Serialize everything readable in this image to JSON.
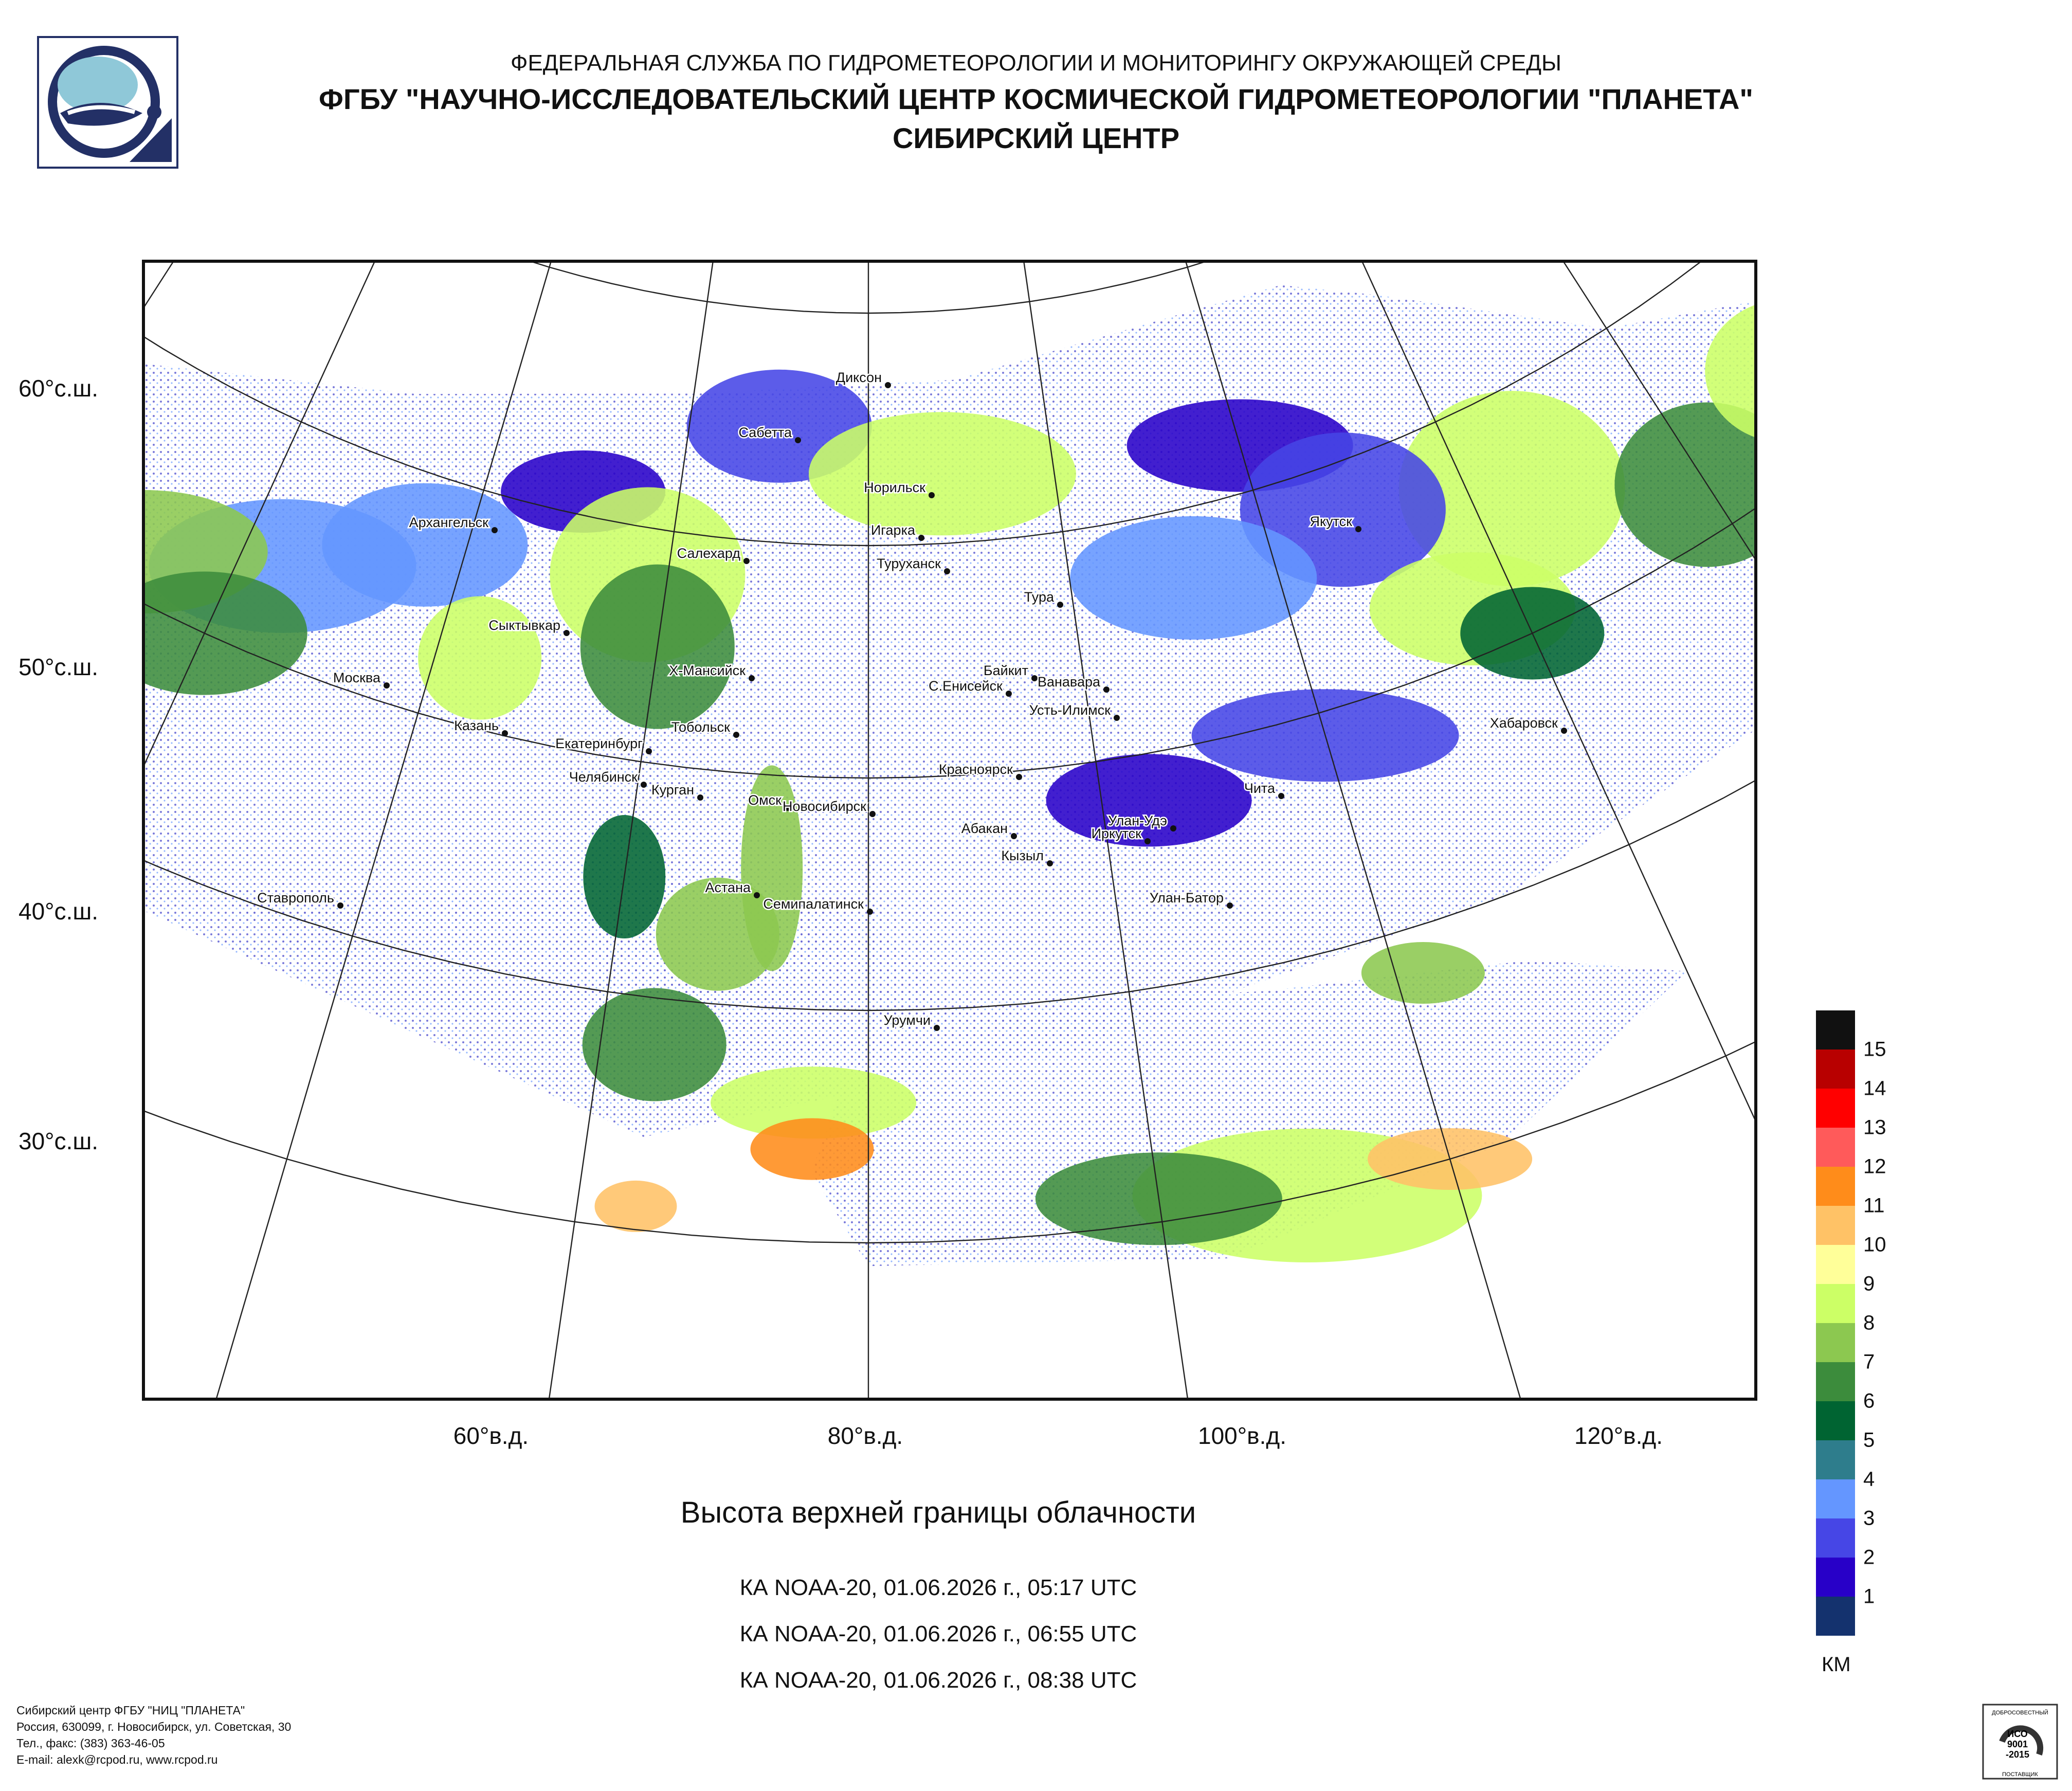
{
  "header": {
    "line1": "ФЕДЕРАЛЬНАЯ СЛУЖБА ПО ГИДРОМЕТЕОРОЛОГИИ И МОНИТОРИНГУ ОКРУЖАЮЩЕЙ СРЕДЫ",
    "line2": "ФГБУ \"НАУЧНО-ИССЛЕДОВАТЕЛЬСКИЙ ЦЕНТР КОСМИЧЕСКОЙ ГИДРОМЕТЕОРОЛОГИИ \"ПЛАНЕТА\"",
    "line3": "СИБИРСКИЙ ЦЕНТР"
  },
  "map": {
    "lat_labels": [
      "60°с.ш.",
      "50°с.ш.",
      "40°с.ш.",
      "30°с.ш."
    ],
    "lon_labels": [
      "60°в.д.",
      "80°в.д.",
      "100°в.д.",
      "120°в.д."
    ],
    "cities": [
      {
        "name": "Диксон"
      },
      {
        "name": "Сабетта"
      },
      {
        "name": "Норильск"
      },
      {
        "name": "Игарка"
      },
      {
        "name": "Архангельск"
      },
      {
        "name": "Салехард"
      },
      {
        "name": "Туруханск"
      },
      {
        "name": "Тура"
      },
      {
        "name": "Якутск"
      },
      {
        "name": "Сыктывкар"
      },
      {
        "name": "Байкит"
      },
      {
        "name": "Ванавара"
      },
      {
        "name": "Москва"
      },
      {
        "name": "Х-Мансийск"
      },
      {
        "name": "С.Енисейск"
      },
      {
        "name": "Усть-Илимск"
      },
      {
        "name": "Казань"
      },
      {
        "name": "Тобольск"
      },
      {
        "name": "Хабаровск"
      },
      {
        "name": "Екатеринбург"
      },
      {
        "name": "Челябинск"
      },
      {
        "name": "Красноярск"
      },
      {
        "name": "Курган"
      },
      {
        "name": "Чита"
      },
      {
        "name": "Омск"
      },
      {
        "name": "Новосибирск"
      },
      {
        "name": "Абакан"
      },
      {
        "name": "Улан-Удэ"
      },
      {
        "name": "Иркутск"
      },
      {
        "name": "Кызыл"
      },
      {
        "name": "Астана"
      },
      {
        "name": "Ставрополь"
      },
      {
        "name": "Семипалатинск"
      },
      {
        "name": "Улан-Батор"
      },
      {
        "name": "Урумчи"
      }
    ]
  },
  "legend": {
    "levels": [
      {
        "label": "15",
        "color": "#111111"
      },
      {
        "label": "14",
        "color": "#b80000"
      },
      {
        "label": "13",
        "color": "#ff0000"
      },
      {
        "label": "12",
        "color": "#ff5a5a"
      },
      {
        "label": "11",
        "color": "#ff8c1a"
      },
      {
        "label": "10",
        "color": "#ffc266"
      },
      {
        "label": "9",
        "color": "#ffff99"
      },
      {
        "label": "8",
        "color": "#ccff66"
      },
      {
        "label": "7",
        "color": "#8cc850"
      },
      {
        "label": "6",
        "color": "#3c8c3c"
      },
      {
        "label": "5",
        "color": "#006432"
      },
      {
        "label": "4",
        "color": "#2e7d8c"
      },
      {
        "label": "3",
        "color": "#6496ff"
      },
      {
        "label": "2",
        "color": "#4646e6"
      },
      {
        "label": "1",
        "color": "#2800c8"
      },
      {
        "label": "",
        "color": "#14326e"
      }
    ],
    "unit": "КМ"
  },
  "title": "Высота верхней границы облачности",
  "passes": [
    "КА NOAA-20, 01.06.2026 г., 05:17 UTC",
    "КА NOAA-20, 01.06.2026 г., 06:55 UTC",
    "КА NOAA-20, 01.06.2026 г., 08:38 UTC"
  ],
  "footer": [
    "Сибирский центр ФГБУ \"НИЦ \"ПЛАНЕТА\"",
    "Россия, 630099, г. Новосибирск, ул. Советская, 30",
    "Тел., факс: (383) 363-46-05",
    "E-mail: alexk@rcpod.ru, www.rcpod.ru"
  ],
  "cert": {
    "top": "ДОБРОСОВЕСТНЫЙ",
    "mid1": "ИСО",
    "mid2": "9001",
    "mid3": "-2015",
    "bottom": "ПОСТАВЩИК"
  }
}
